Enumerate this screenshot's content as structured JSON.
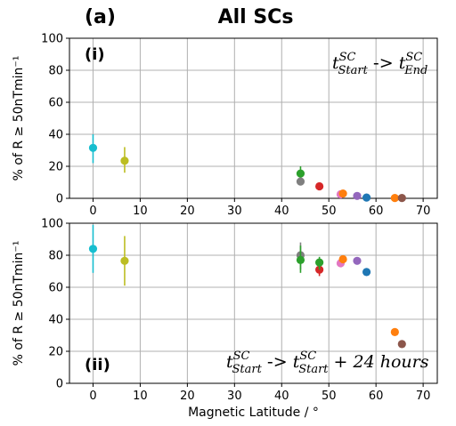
{
  "figure": {
    "letter": "(a)",
    "title": "All SCs"
  },
  "chart_data": [
    {
      "type": "scatter",
      "panel_label": "(i)",
      "annotation": {
        "t1": "t",
        "t1_sup": "SC",
        "t1_sub": "Start",
        "arrow": " -> ",
        "t2": "t",
        "t2_sup": "SC",
        "t2_sub": "End",
        "extra": ""
      },
      "xlabel": "",
      "ylabel": "% of R ≥ 50nTmin⁻¹",
      "xlim": [
        -5,
        73
      ],
      "ylim": [
        0,
        100
      ],
      "xticks": [
        "0",
        "10",
        "20",
        "30",
        "40",
        "50",
        "60",
        "70"
      ],
      "yticks": [
        "0",
        "20",
        "40",
        "60",
        "80",
        "100"
      ],
      "grid": true,
      "points": [
        {
          "x": 0,
          "y": 31.5,
          "err": [
            22,
            40
          ],
          "color": "#17becf"
        },
        {
          "x": 6.7,
          "y": 23.5,
          "err": [
            16,
            32
          ],
          "color": "#bcbd22"
        },
        {
          "x": 44,
          "y": 15.5,
          "err": [
            12,
            20
          ],
          "color": "#2ca02c"
        },
        {
          "x": 44,
          "y": 10.5,
          "err": null,
          "color": "#7f7f7f"
        },
        {
          "x": 48,
          "y": 7.5,
          "err": null,
          "color": "#d62728"
        },
        {
          "x": 52.5,
          "y": 2.5,
          "err": null,
          "color": "#e377c2"
        },
        {
          "x": 53,
          "y": 3,
          "err": null,
          "color": "#ff7f0e"
        },
        {
          "x": 56,
          "y": 1.5,
          "err": null,
          "color": "#9467bd"
        },
        {
          "x": 58,
          "y": 0.5,
          "err": null,
          "color": "#1f77b4"
        },
        {
          "x": 64,
          "y": 0.2,
          "err": null,
          "color": "#ff7f0e"
        },
        {
          "x": 65.5,
          "y": 0.2,
          "err": null,
          "color": "#8c564b"
        }
      ]
    },
    {
      "type": "scatter",
      "panel_label": "(ii)",
      "annotation": {
        "t1": "t",
        "t1_sup": "SC",
        "t1_sub": "Start",
        "arrow": " -> ",
        "t2": "t",
        "t2_sup": "SC",
        "t2_sub": "Start",
        "extra": " + 24 hours"
      },
      "xlabel": "Magnetic Latitude / °",
      "ylabel": "% of R ≥ 50nTmin⁻¹",
      "xlim": [
        -5,
        73
      ],
      "ylim": [
        0,
        100
      ],
      "xticks": [
        "0",
        "10",
        "20",
        "30",
        "40",
        "50",
        "60",
        "70"
      ],
      "yticks": [
        "0",
        "20",
        "40",
        "60",
        "80",
        "100"
      ],
      "grid": true,
      "points": [
        {
          "x": 0,
          "y": 84,
          "err": [
            69,
            99
          ],
          "color": "#17becf"
        },
        {
          "x": 6.7,
          "y": 76.5,
          "err": [
            61,
            92
          ],
          "color": "#bcbd22"
        },
        {
          "x": 44,
          "y": 80,
          "err": [
            71,
            88
          ],
          "color": "#7f7f7f"
        },
        {
          "x": 44,
          "y": 77,
          "err": [
            69,
            86
          ],
          "color": "#2ca02c"
        },
        {
          "x": 48,
          "y": 71,
          "err": [
            67,
            75
          ],
          "color": "#d62728"
        },
        {
          "x": 48,
          "y": 75.5,
          "err": [
            71,
            79
          ],
          "color": "#2ca02c"
        },
        {
          "x": 52.5,
          "y": 75,
          "err": null,
          "color": "#e377c2"
        },
        {
          "x": 53,
          "y": 77.5,
          "err": null,
          "color": "#ff7f0e"
        },
        {
          "x": 56,
          "y": 76.5,
          "err": null,
          "color": "#9467bd"
        },
        {
          "x": 58,
          "y": 69.5,
          "err": null,
          "color": "#1f77b4"
        },
        {
          "x": 64,
          "y": 32,
          "err": null,
          "color": "#ff7f0e"
        },
        {
          "x": 65.5,
          "y": 24.5,
          "err": null,
          "color": "#8c564b"
        }
      ]
    }
  ]
}
